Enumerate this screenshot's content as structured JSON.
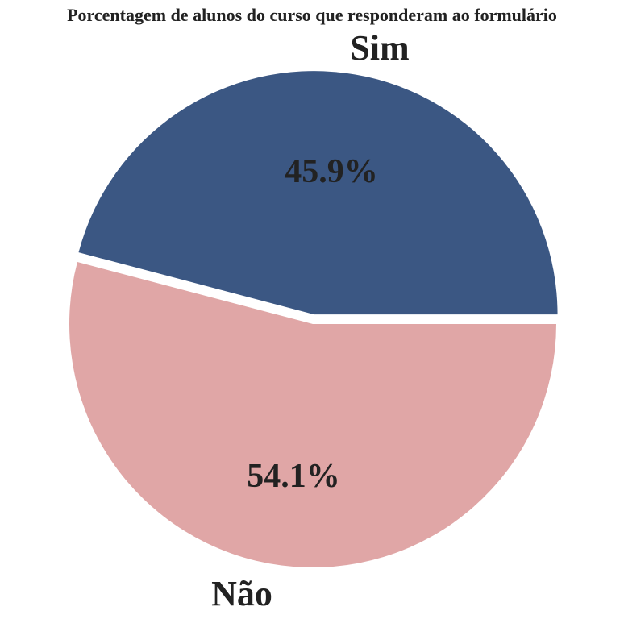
{
  "chart_data": {
    "type": "pie",
    "title": "Porcentagem de alunos do curso que responderam ao formulário",
    "slices": [
      {
        "label": "Sim",
        "value": 45.9,
        "pct_label": "45.9%",
        "color": "#3b5783"
      },
      {
        "label": "Não",
        "value": 54.1,
        "pct_label": "54.1%",
        "color": "#e0a6a6"
      }
    ]
  }
}
